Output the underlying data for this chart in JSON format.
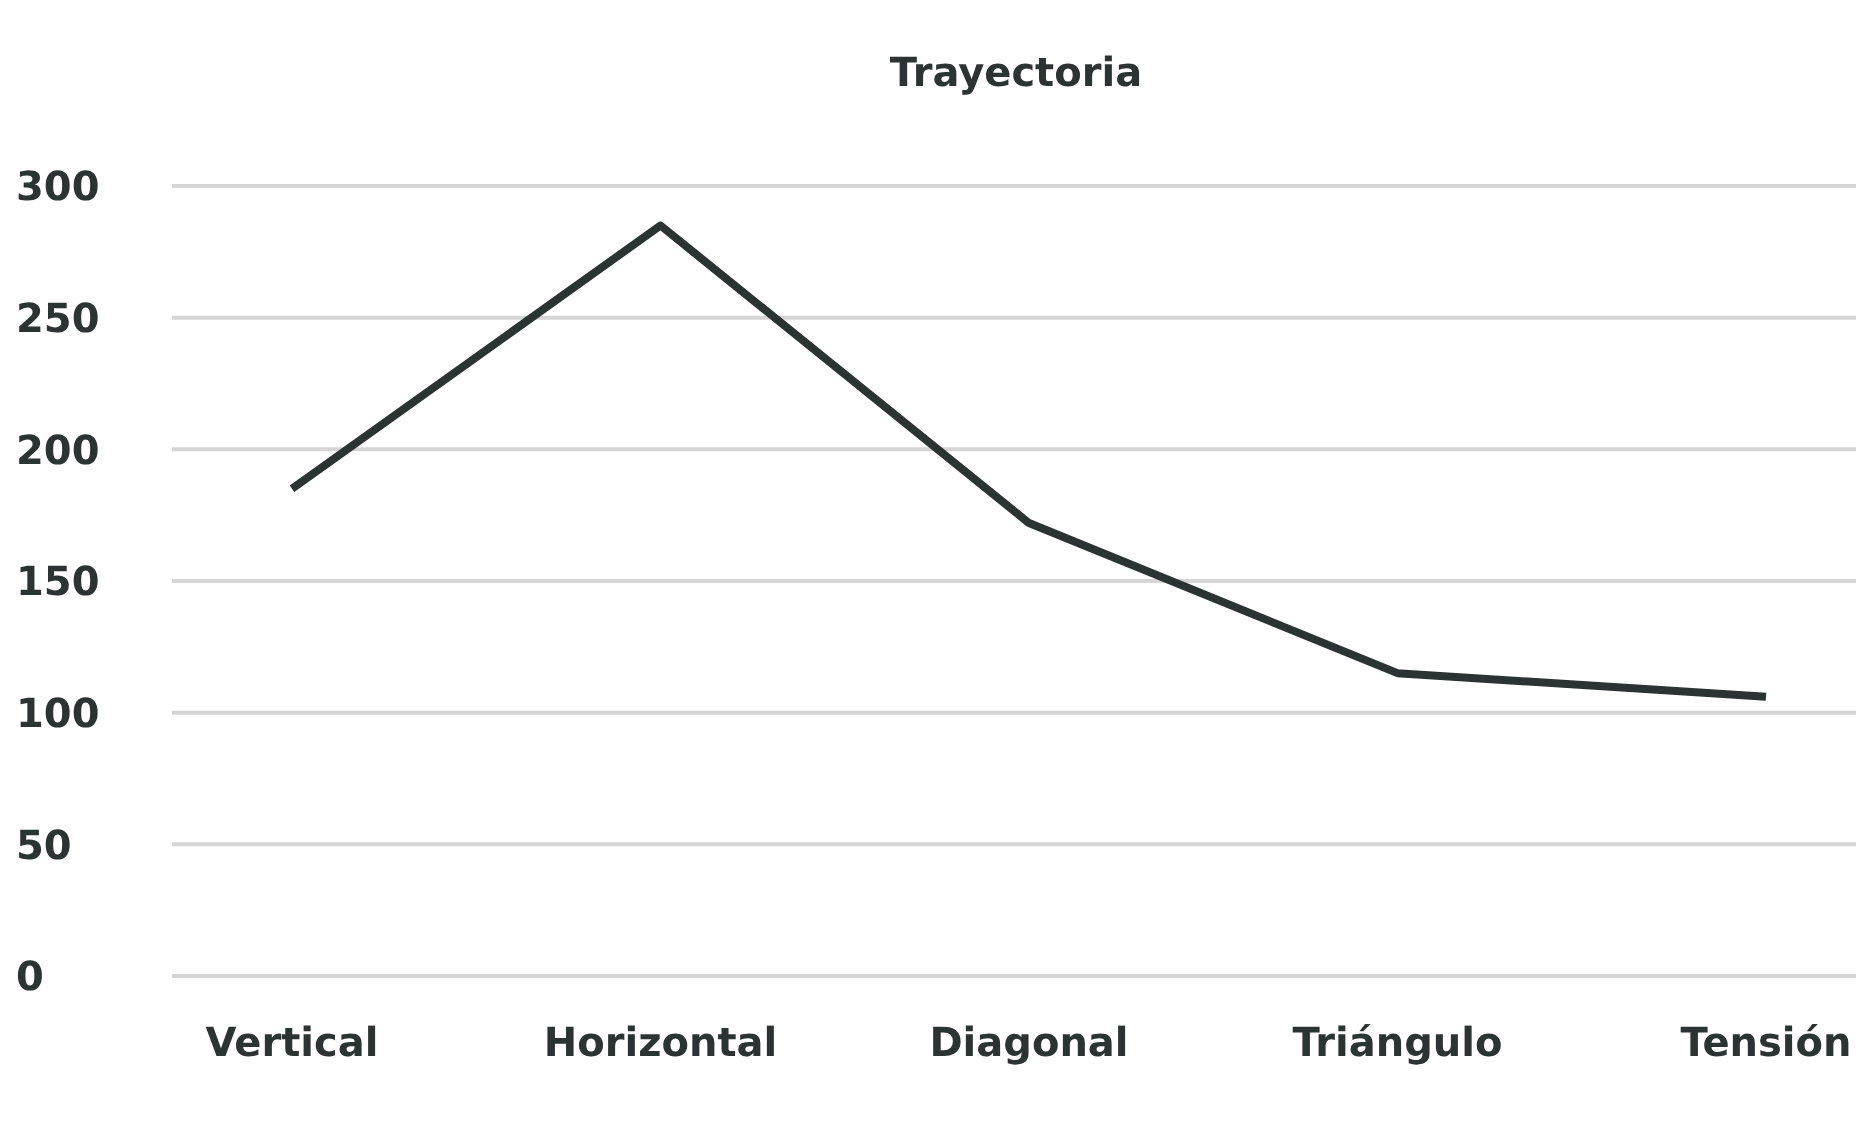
{
  "chart_data": {
    "type": "line",
    "title": "Trayectoria",
    "categories": [
      "Vertical",
      "Horizontal",
      "Diagonal",
      "Triángulo",
      "Tensión"
    ],
    "series": [
      {
        "color": "#2b3432",
        "values": [
          185,
          285,
          172,
          115,
          106
        ]
      }
    ],
    "ylim": [
      0,
      300
    ],
    "yticks": [
      0,
      50,
      100,
      150,
      200,
      250,
      300
    ],
    "grid": "y",
    "marker": "none",
    "line_style": "solid"
  }
}
